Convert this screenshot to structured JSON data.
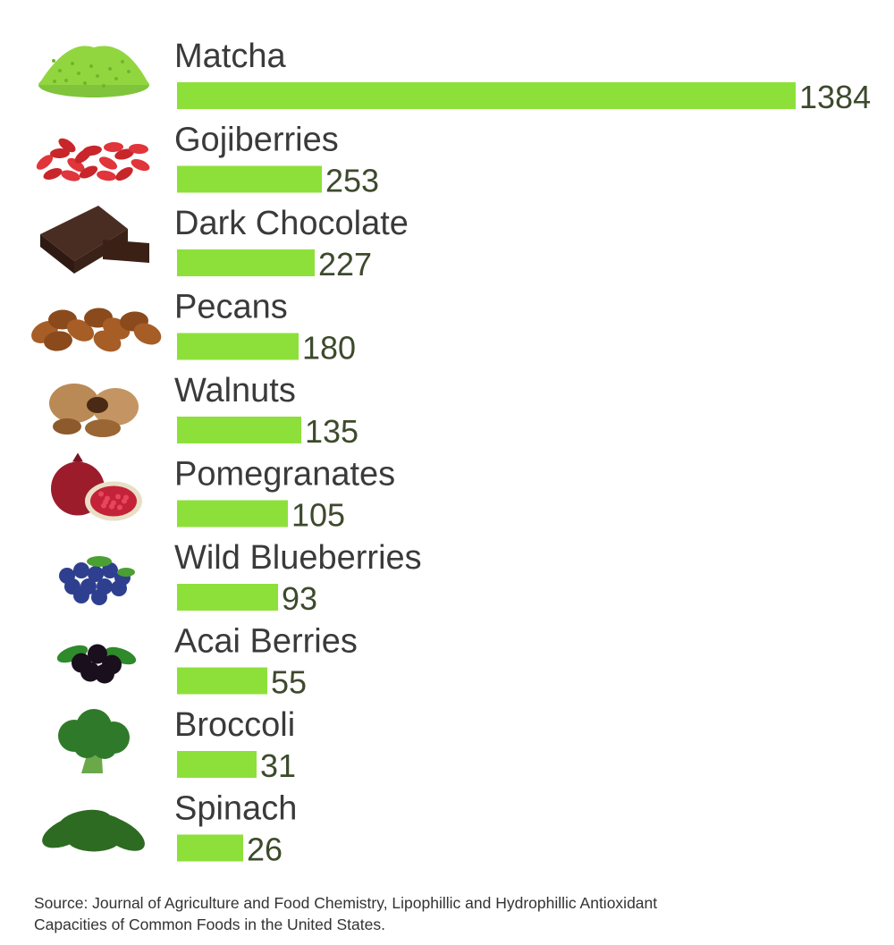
{
  "chart_data": {
    "type": "bar",
    "orientation": "horizontal",
    "categories": [
      "Matcha",
      "Gojiberries",
      "Dark Chocolate",
      "Pecans",
      "Walnuts",
      "Pomegranates",
      "Wild Blueberries",
      "Acai Berries",
      "Broccoli",
      "Spinach"
    ],
    "values": [
      1384,
      253,
      227,
      180,
      135,
      105,
      93,
      55,
      31,
      26
    ],
    "icons": [
      "matcha-powder-icon",
      "gojiberries-icon",
      "dark-chocolate-icon",
      "pecans-icon",
      "walnuts-icon",
      "pomegranate-icon",
      "blueberries-icon",
      "acai-berries-icon",
      "broccoli-icon",
      "spinach-icon"
    ],
    "bar_color": "#8de03a",
    "title": "",
    "xlabel": "",
    "ylabel": ""
  },
  "source": {
    "line1": "Source: Journal of Agriculture and Food Chemistry, Lipophillic and Hydrophillic Antioxidant",
    "line2": "Capacities of Common Foods in the United States."
  }
}
